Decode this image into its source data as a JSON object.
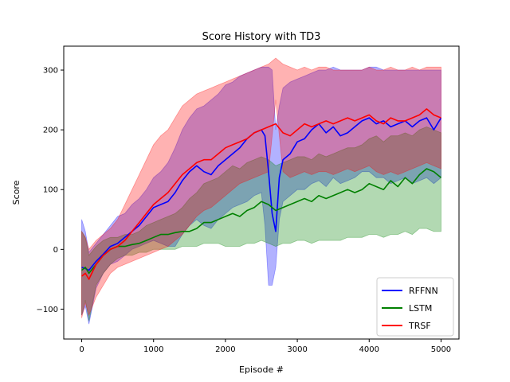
{
  "chart_data": {
    "type": "line",
    "title": "Score History with TD3",
    "xlabel": "Episode #",
    "ylabel": "Score",
    "xlim": [
      -250,
      5250
    ],
    "ylim": [
      -150,
      340
    ],
    "xticks": [
      0,
      1000,
      2000,
      3000,
      4000,
      5000
    ],
    "yticks": [
      -100,
      0,
      100,
      200,
      300
    ],
    "grid": false,
    "legend_position": "lower-right",
    "series": [
      {
        "name": "RFFNN",
        "color": "#0000ff",
        "x": [
          0,
          50,
          100,
          200,
          300,
          400,
          500,
          600,
          700,
          800,
          900,
          1000,
          1100,
          1200,
          1300,
          1400,
          1500,
          1600,
          1700,
          1800,
          1900,
          2000,
          2100,
          2200,
          2300,
          2400,
          2500,
          2550,
          2600,
          2650,
          2700,
          2750,
          2800,
          2900,
          3000,
          3100,
          3200,
          3300,
          3400,
          3500,
          3600,
          3700,
          3800,
          3900,
          4000,
          4100,
          4200,
          4300,
          4400,
          4500,
          4600,
          4700,
          4800,
          4900,
          5000
        ],
        "values": [
          -30,
          -32,
          -35,
          -20,
          -8,
          5,
          10,
          20,
          30,
          40,
          55,
          70,
          75,
          80,
          95,
          115,
          130,
          140,
          130,
          125,
          140,
          150,
          160,
          170,
          185,
          195,
          200,
          190,
          130,
          60,
          30,
          120,
          150,
          160,
          180,
          185,
          200,
          210,
          195,
          205,
          190,
          195,
          205,
          215,
          220,
          210,
          215,
          205,
          210,
          215,
          205,
          215,
          220,
          200,
          220
        ],
        "upper": [
          50,
          30,
          -5,
          10,
          25,
          40,
          55,
          60,
          75,
          85,
          100,
          120,
          130,
          145,
          170,
          200,
          220,
          235,
          240,
          250,
          260,
          275,
          280,
          290,
          295,
          300,
          305,
          305,
          305,
          300,
          200,
          240,
          270,
          280,
          285,
          290,
          295,
          300,
          300,
          305,
          300,
          300,
          300,
          300,
          305,
          305,
          300,
          300,
          300,
          300,
          300,
          300,
          300,
          300,
          300
        ],
        "lower": [
          -110,
          -95,
          -125,
          -65,
          -40,
          -25,
          -20,
          -10,
          0,
          5,
          10,
          15,
          10,
          5,
          5,
          25,
          40,
          50,
          40,
          35,
          50,
          60,
          70,
          75,
          80,
          90,
          95,
          40,
          -60,
          -60,
          -30,
          50,
          80,
          90,
          100,
          100,
          110,
          115,
          105,
          120,
          110,
          115,
          120,
          130,
          130,
          120,
          120,
          110,
          115,
          120,
          110,
          115,
          120,
          110,
          120
        ]
      },
      {
        "name": "LSTM",
        "color": "#008000",
        "x": [
          0,
          50,
          100,
          200,
          300,
          400,
          500,
          600,
          700,
          800,
          900,
          1000,
          1100,
          1200,
          1300,
          1400,
          1500,
          1600,
          1700,
          1800,
          1900,
          2000,
          2100,
          2200,
          2300,
          2400,
          2500,
          2600,
          2700,
          2800,
          2900,
          3000,
          3100,
          3200,
          3300,
          3400,
          3500,
          3600,
          3700,
          3800,
          3900,
          4000,
          4100,
          4200,
          4300,
          4400,
          4500,
          4600,
          4700,
          4800,
          4900,
          5000
        ],
        "values": [
          -35,
          -30,
          -40,
          -25,
          -10,
          0,
          5,
          5,
          8,
          10,
          15,
          20,
          25,
          25,
          28,
          30,
          30,
          35,
          45,
          45,
          50,
          55,
          60,
          55,
          65,
          70,
          80,
          75,
          65,
          70,
          75,
          80,
          85,
          80,
          90,
          85,
          90,
          95,
          100,
          95,
          100,
          110,
          105,
          100,
          115,
          105,
          120,
          110,
          125,
          135,
          130,
          120
        ],
        "upper": [
          30,
          20,
          -10,
          5,
          15,
          20,
          20,
          25,
          25,
          30,
          40,
          45,
          50,
          55,
          60,
          70,
          85,
          95,
          110,
          115,
          120,
          130,
          140,
          135,
          145,
          150,
          155,
          150,
          140,
          145,
          150,
          155,
          155,
          150,
          160,
          155,
          160,
          165,
          170,
          170,
          175,
          185,
          190,
          180,
          190,
          190,
          195,
          190,
          200,
          205,
          200,
          195
        ],
        "lower": [
          -110,
          -85,
          -120,
          -60,
          -40,
          -25,
          -15,
          -10,
          -10,
          -5,
          -5,
          0,
          0,
          0,
          0,
          5,
          5,
          5,
          10,
          10,
          10,
          5,
          5,
          5,
          10,
          10,
          15,
          10,
          5,
          10,
          10,
          15,
          15,
          10,
          15,
          15,
          15,
          15,
          20,
          20,
          20,
          25,
          25,
          20,
          25,
          25,
          30,
          25,
          35,
          35,
          30,
          30
        ]
      },
      {
        "name": "TRSF",
        "color": "#ff0000",
        "x": [
          0,
          50,
          100,
          200,
          300,
          400,
          500,
          600,
          700,
          800,
          900,
          1000,
          1100,
          1200,
          1300,
          1400,
          1500,
          1600,
          1700,
          1800,
          1900,
          2000,
          2100,
          2200,
          2300,
          2400,
          2500,
          2600,
          2700,
          2800,
          2900,
          3000,
          3100,
          3200,
          3300,
          3400,
          3500,
          3600,
          3700,
          3800,
          3900,
          4000,
          4100,
          4200,
          4300,
          4400,
          4500,
          4600,
          4700,
          4800,
          4900,
          5000
        ],
        "values": [
          -45,
          -40,
          -50,
          -25,
          -10,
          0,
          5,
          15,
          30,
          45,
          60,
          75,
          85,
          95,
          110,
          125,
          135,
          145,
          150,
          150,
          160,
          170,
          175,
          180,
          185,
          195,
          200,
          205,
          210,
          195,
          190,
          200,
          210,
          205,
          210,
          215,
          210,
          215,
          220,
          215,
          220,
          225,
          215,
          210,
          220,
          215,
          215,
          220,
          225,
          235,
          225,
          220
        ],
        "upper": [
          30,
          20,
          0,
          15,
          25,
          35,
          50,
          75,
          100,
          125,
          150,
          175,
          190,
          200,
          220,
          240,
          250,
          260,
          265,
          270,
          275,
          280,
          285,
          290,
          295,
          300,
          305,
          310,
          320,
          310,
          305,
          300,
          305,
          300,
          305,
          305,
          300,
          300,
          300,
          300,
          300,
          305,
          300,
          300,
          305,
          300,
          300,
          305,
          300,
          305,
          305,
          305
        ],
        "lower": [
          -115,
          -90,
          -110,
          -80,
          -60,
          -40,
          -30,
          -25,
          -20,
          -15,
          -10,
          -5,
          0,
          5,
          15,
          25,
          40,
          55,
          65,
          70,
          80,
          90,
          100,
          110,
          115,
          120,
          125,
          130,
          250,
          130,
          120,
          125,
          130,
          125,
          130,
          130,
          125,
          130,
          135,
          130,
          135,
          140,
          130,
          125,
          130,
          125,
          130,
          135,
          140,
          145,
          140,
          135
        ]
      }
    ]
  }
}
